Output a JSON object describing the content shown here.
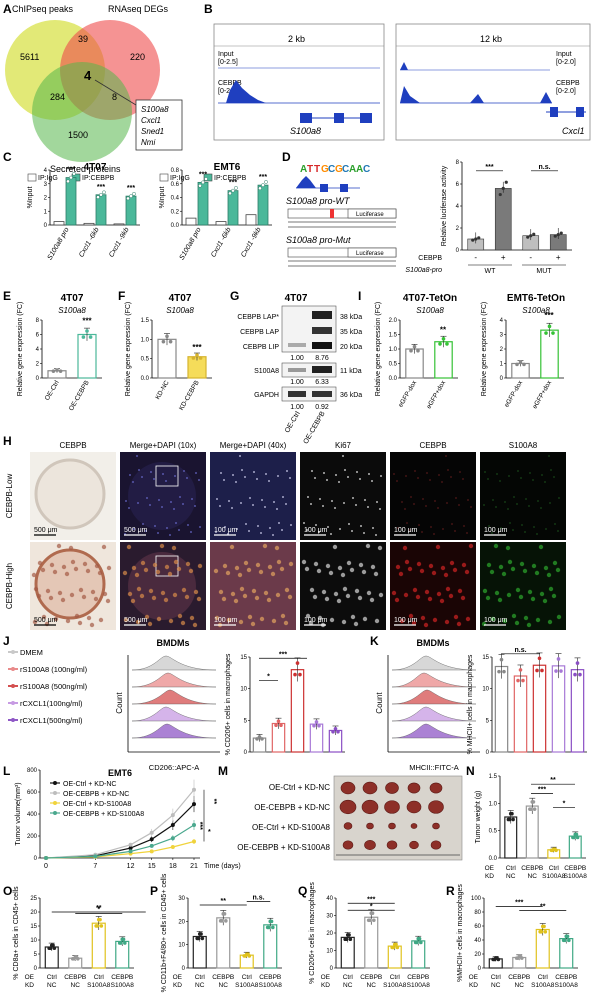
{
  "panels": {
    "A": {
      "label": "A",
      "sets": {
        "chip": "ChIPseq peaks",
        "rna": "RNAseq DEGs",
        "sec": "Secreted proteins"
      },
      "counts": {
        "chip_only": "5611",
        "chip_rna": "39",
        "rna_only": "220",
        "all": "4",
        "chip_sec": "284",
        "rna_sec": "8",
        "sec_only": "1500"
      },
      "genes": [
        "S100a8",
        "Cxcl1",
        "Sned1",
        "Nmi"
      ]
    },
    "B": {
      "label": "B",
      "left": {
        "scale": "2 kb",
        "input": "Input",
        "input_range": "[0-2.5]",
        "cebpb": "CEBPB",
        "cebpb_range": "[0-2.5]",
        "gene": "S100a8"
      },
      "right": {
        "scale": "12 kb",
        "input": "Input",
        "input_range": "[0-2.0]",
        "cebpb": "CEBPB",
        "cebpb_range": "[0-2.0]",
        "gene": "Cxcl1"
      }
    },
    "C": {
      "label": "C",
      "legend": [
        "IP:IgG",
        "IP:CEBPB"
      ],
      "ylabel": "%Input",
      "charts": [
        {
          "title": "4T07",
          "categories": [
            "S100a8 pro",
            "Cxcl1 -6kb",
            "Cxcl1 -9kb"
          ],
          "igg": [
            0.25,
            0.12,
            0.08
          ],
          "cebpb": [
            3.45,
            2.2,
            2.1
          ],
          "sig": [
            "***",
            "***",
            "***"
          ],
          "yticks": [
            "0",
            "1",
            "2",
            "3",
            "4"
          ],
          "ylim": [
            0,
            4
          ]
        },
        {
          "title": "EMT6",
          "categories": [
            "S100a8 pro",
            "Cxcl1 -6kb",
            "Cxcl1 -9kb"
          ],
          "igg": [
            0.1,
            0.05,
            0.15
          ],
          "cebpb": [
            0.62,
            0.5,
            0.58
          ],
          "sig": [
            "***",
            "***",
            "***"
          ],
          "yticks": [
            "0.0",
            "0.2",
            "0.4",
            "0.6",
            "0.8"
          ],
          "ylim": [
            0,
            0.8
          ]
        }
      ]
    },
    "D": {
      "label": "D",
      "motif": "ATTGCGCAAC",
      "wt": "S100a8 pro-WT",
      "mut": "S100a8 pro-Mut",
      "reporter": "Luciferase",
      "ylabel": "Relative luciferase activity",
      "yticks": [
        "0",
        "2",
        "4",
        "6",
        "8"
      ],
      "cebpb_label": "CEBPB",
      "signs": [
        "-",
        "+",
        "-",
        "+"
      ],
      "xgroup_label": "S100a8-pro",
      "xgroups": [
        "WT",
        "MUT"
      ],
      "sig": [
        "***",
        "n.s."
      ]
    },
    "E": {
      "label": "E",
      "title": "4T07",
      "gene": "S100a8",
      "ylabel": "Relative gene expression (FC)",
      "yticks": [
        "0",
        "2",
        "4",
        "6",
        "8"
      ],
      "sig": "***"
    },
    "F": {
      "label": "F",
      "title": "4T07",
      "gene": "S100a8",
      "ylabel": "Relative gene expression (FC)",
      "yticks": [
        "0.0",
        "0.5",
        "1.0",
        "1.5"
      ],
      "sig": "***"
    },
    "G": {
      "label": "G",
      "title": "4T07",
      "rows": [
        "CEBPB LAP*",
        "CEBPB LAP",
        "CEBPB LIP",
        "S100A8",
        "GAPDH"
      ],
      "sizes": [
        "38 kDa",
        "35 kDa",
        "20 kDa",
        "11 kDa",
        "36 kDa"
      ],
      "quant1": [
        "1.00",
        "8.76"
      ],
      "quant2": [
        "1.00",
        "6.33"
      ],
      "quant3": [
        "1.00",
        "0.92"
      ],
      "lanes": [
        "OE-Ctrl",
        "OE-CEBPB"
      ]
    },
    "I": {
      "label": "I",
      "ylabel": "Relative gene expression (FC)",
      "charts": [
        {
          "title": "4T07-TetOn",
          "gene": "S100a8",
          "yticks": [
            "0.0",
            "0.5",
            "1.0",
            "1.5",
            "2.0"
          ],
          "sig": "**"
        },
        {
          "title": "EMT6-TetOn",
          "gene": "S100a8",
          "yticks": [
            "0",
            "1",
            "2",
            "3",
            "4"
          ],
          "sig": "***"
        }
      ]
    },
    "H": {
      "label": "H",
      "columns": [
        "CEBPB",
        "Merge+DAPI (10x)",
        "Merge+DAPI (40x)",
        "Ki67",
        "CEBPB",
        "S100A8"
      ],
      "rows": [
        "CEBPB-Low",
        "CEBPB-High"
      ],
      "scales": [
        "500 μm",
        "500 μm",
        "100 μm",
        "100 μm",
        "100 μm",
        "100 μm"
      ]
    },
    "J": {
      "label": "J",
      "legend": [
        "DMEM",
        "rS100A8 (100ng/ml)",
        "rS100A8 (500ng/ml)",
        "rCXCL1(100ng/ml)",
        "rCXCL1(500ng/ml)"
      ],
      "hist_title": "BMDMs",
      "hist_ylabel": "Count",
      "hist_xlabel": "CD206::APC-A",
      "bar_ylabel": "% CD206+ cells in macrophages",
      "bar_yticks": [
        "0",
        "5",
        "10",
        "15"
      ],
      "sig": [
        "***",
        "*"
      ]
    },
    "K": {
      "label": "K",
      "hist_title": "BMDMs",
      "hist_ylabel": "Count",
      "hist_xlabel": "MHCII::FITC-A",
      "bar_ylabel": "% MHCII+ cells in macrophages",
      "bar_yticks": [
        "0",
        "5",
        "10",
        "15"
      ],
      "sig": "n.s."
    },
    "L": {
      "label": "L",
      "title": "EMT6",
      "ylabel": "Tumor volume(mm³)",
      "xlabel": "Time (days)",
      "xticks": [
        "0",
        "7",
        "12",
        "15",
        "18",
        "21"
      ],
      "yticks": [
        "0",
        "200",
        "400",
        "600",
        "800"
      ],
      "sig": [
        "***",
        "**",
        "*"
      ],
      "legend": [
        "OE-Ctrl + KD-NC",
        "OE-CEBPB + KD-NC",
        "OE-Ctrl + KD-S100A8",
        "OE-CEBPB + KD-S100A8"
      ]
    },
    "M": {
      "label": "M",
      "rows": [
        "OE-Ctrl + KD-NC",
        "OE-CEBPB + KD-NC",
        "OE-Ctrl + KD-S100A8",
        "OE-CEBPB + KD-S100A8"
      ]
    },
    "N": {
      "label": "N",
      "ylabel": "Tumor weight (g)",
      "yticks": [
        "0.0",
        "0.5",
        "1.0",
        "1.5"
      ],
      "sig": [
        "***",
        "**",
        "*"
      ]
    },
    "O": {
      "label": "O",
      "ylabel": "% CD8a+ cells in CD45+ cells",
      "yticks": [
        "0",
        "5",
        "10",
        "15",
        "20",
        "25"
      ],
      "sig": [
        "**",
        "*"
      ]
    },
    "P": {
      "label": "P",
      "ylabel": "% CD11b+F4/80+ cells in CD45+ cells",
      "yticks": [
        "0",
        "10",
        "20",
        "30"
      ],
      "sig": [
        "**",
        "n.s."
      ]
    },
    "Q": {
      "label": "Q",
      "ylabel": "% CD206+ cells in macrophages",
      "yticks": [
        "0",
        "10",
        "20",
        "30",
        "40"
      ],
      "sig": [
        "***",
        "*"
      ]
    },
    "R": {
      "label": "R",
      "ylabel": "%MHCII+ cells in macrophages",
      "yticks": [
        "0",
        "20",
        "40",
        "60",
        "80",
        "100"
      ],
      "sig": [
        "***",
        "**"
      ]
    },
    "group_axis": {
      "oe_label": "OE",
      "kd_label": "KD",
      "oe": [
        "Ctrl",
        "CEBPB",
        "Ctrl",
        "CEBPB"
      ],
      "kd": [
        "NC",
        "NC",
        "S100A8",
        "S100A8"
      ]
    }
  },
  "chart_data": [
    {
      "type": "bar",
      "title": "4T07",
      "categories": [
        "S100a8 pro",
        "Cxcl1 -6kb",
        "Cxcl1 -9kb"
      ],
      "series": [
        {
          "name": "IP:IgG",
          "values": [
            0.25,
            0.12,
            0.08
          ]
        },
        {
          "name": "IP:CEBPB",
          "values": [
            3.45,
            2.2,
            2.1
          ]
        }
      ],
      "ylabel": "%Input",
      "ylim": [
        0,
        4
      ]
    },
    {
      "type": "bar",
      "title": "EMT6",
      "categories": [
        "S100a8 pro",
        "Cxcl1 -6kb",
        "Cxcl1 -9kb"
      ],
      "series": [
        {
          "name": "IP:IgG",
          "values": [
            0.1,
            0.05,
            0.15
          ]
        },
        {
          "name": "IP:CEBPB",
          "values": [
            0.62,
            0.5,
            0.58
          ]
        }
      ],
      "ylabel": "%Input",
      "ylim": [
        0,
        0.8
      ]
    },
    {
      "type": "bar",
      "categories": [
        "WT -",
        "WT +",
        "MUT -",
        "MUT +"
      ],
      "values": [
        1.0,
        5.6,
        1.3,
        1.4
      ],
      "ylabel": "Relative luciferase activity",
      "ylim": [
        0,
        8
      ]
    },
    {
      "type": "bar",
      "title": "4T07",
      "categories": [
        "OE-Ctrl",
        "OE-CEBPB"
      ],
      "values": [
        1.0,
        6.0
      ],
      "ylabel": "Relative gene expression (FC)",
      "ylim": [
        0,
        8
      ]
    },
    {
      "type": "bar",
      "title": "4T07",
      "categories": [
        "KD-NC",
        "KD-CEBPB"
      ],
      "values": [
        1.0,
        0.55
      ],
      "ylabel": "Relative gene expression (FC)",
      "ylim": [
        0,
        1.5
      ]
    },
    {
      "type": "bar",
      "title": "4T07-TetOn",
      "categories": [
        "eGFP-dox",
        "eGFP+dox"
      ],
      "values": [
        1.0,
        1.25
      ],
      "ylabel": "Relative gene expression (FC)",
      "ylim": [
        0,
        2
      ]
    },
    {
      "type": "bar",
      "title": "EMT6-TetOn",
      "categories": [
        "eGFP-dox",
        "eGFP+dox"
      ],
      "values": [
        1.0,
        3.3
      ],
      "ylabel": "Relative gene expression (FC)",
      "ylim": [
        0,
        4
      ]
    },
    {
      "type": "bar",
      "categories": [
        "DMEM",
        "rS100A8 (100ng/ml)",
        "rS100A8 (500ng/ml)",
        "rCXCL1(100ng/ml)",
        "rCXCL1(500ng/ml)"
      ],
      "values": [
        2.2,
        4.5,
        13.0,
        4.4,
        3.4
      ],
      "ylabel": "% CD206+ cells in macrophages",
      "ylim": [
        0,
        15
      ]
    },
    {
      "type": "bar",
      "categories": [
        "DMEM",
        "rS100A8 (100ng/ml)",
        "rS100A8 (500ng/ml)",
        "rCXCL1(100ng/ml)",
        "rCXCL1(500ng/ml)"
      ],
      "values": [
        13.5,
        12.0,
        13.7,
        13.6,
        13.0
      ],
      "ylabel": "% MHCII+ cells in macrophages",
      "ylim": [
        0,
        15
      ]
    },
    {
      "type": "line",
      "title": "EMT6",
      "x": [
        0,
        7,
        12,
        15,
        18,
        21
      ],
      "series": [
        {
          "name": "OE-Ctrl + KD-NC",
          "values": [
            0,
            20,
            90,
            170,
            300,
            490
          ]
        },
        {
          "name": "OE-CEBPB + KD-NC",
          "values": [
            0,
            30,
            120,
            230,
            390,
            620
          ]
        },
        {
          "name": "OE-Ctrl + KD-S100A8",
          "values": [
            0,
            10,
            40,
            60,
            100,
            150
          ]
        },
        {
          "name": "OE-CEBPB + KD-S100A8",
          "values": [
            0,
            15,
            60,
            110,
            180,
            300
          ]
        }
      ],
      "xlabel": "Time (days)",
      "ylabel": "Tumor volume(mm³)",
      "ylim": [
        0,
        800
      ]
    },
    {
      "type": "bar",
      "categories": [
        "Ctrl NC",
        "CEBPB NC",
        "Ctrl S100A8",
        "CEBPB S100A8"
      ],
      "values": [
        0.75,
        0.95,
        0.15,
        0.4
      ],
      "ylabel": "Tumor weight (g)",
      "ylim": [
        0,
        1.5
      ]
    },
    {
      "type": "bar",
      "categories": [
        "Ctrl NC",
        "CEBPB NC",
        "Ctrl S100A8",
        "CEBPB S100A8"
      ],
      "values": [
        7.5,
        3.5,
        16.0,
        9.5
      ],
      "ylabel": "% CD8a+ cells in CD45+ cells",
      "ylim": [
        0,
        25
      ]
    },
    {
      "type": "bar",
      "categories": [
        "Ctrl NC",
        "CEBPB NC",
        "Ctrl S100A8",
        "CEBPB S100A8"
      ],
      "values": [
        13.5,
        21.5,
        5.5,
        18.5
      ],
      "ylabel": "% CD11b+F4/80+ cells in CD45+ cells",
      "ylim": [
        0,
        30
      ]
    },
    {
      "type": "bar",
      "categories": [
        "Ctrl NC",
        "CEBPB NC",
        "Ctrl S100A8",
        "CEBPB S100A8"
      ],
      "values": [
        17.5,
        29.0,
        12.5,
        15.5
      ],
      "ylabel": "% CD206+ cells in macrophages",
      "ylim": [
        0,
        40
      ]
    },
    {
      "type": "bar",
      "categories": [
        "Ctrl NC",
        "CEBPB NC",
        "Ctrl S100A8",
        "CEBPB S100A8"
      ],
      "values": [
        13.0,
        15.0,
        55.0,
        42.0
      ],
      "ylabel": "%MHCII+ cells in macrophages",
      "ylim": [
        0,
        100
      ]
    }
  ]
}
